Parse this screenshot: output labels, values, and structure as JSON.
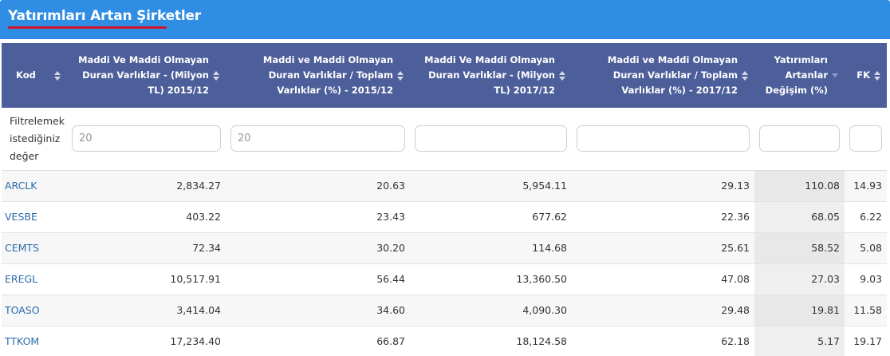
{
  "title": "Yatırımları Artan Şirketler",
  "colors": {
    "title_bar": "#2f8de3",
    "title_underline": "#d0142c",
    "header_bg": "#4d5f9a",
    "link": "#2a6ba8"
  },
  "columns": [
    {
      "label": "Kod",
      "sort": "both"
    },
    {
      "label": "Maddi Ve Maddi Olmayan Duran Varlıklar - (Milyon TL) 2015/12",
      "sort": "both"
    },
    {
      "label": "Maddi ve Maddi Olmayan Duran Varlıklar / Toplam Varlıklar (%) - 2015/12",
      "sort": "both"
    },
    {
      "label": "Maddi Ve Maddi Olmayan Duran Varlıklar - (Milyon TL) 2017/12",
      "sort": "both"
    },
    {
      "label": "Maddi ve Maddi Olmayan Duran Varlıklar / Toplam Varlıklar (%) - 2017/12",
      "sort": "both"
    },
    {
      "label": "Yatırımları Artanlar Değişim (%)",
      "sort": "desc"
    },
    {
      "label": "FK",
      "sort": "both"
    }
  ],
  "filter": {
    "label": "Filtrelemek istediğiniz değer",
    "placeholders": [
      "20",
      "20",
      "",
      "",
      "",
      ""
    ]
  },
  "rows": [
    [
      "ARCLK",
      "2,834.27",
      "20.63",
      "5,954.11",
      "29.13",
      "110.08",
      "14.93"
    ],
    [
      "VESBE",
      "403.22",
      "23.43",
      "677.62",
      "22.36",
      "68.05",
      "6.22"
    ],
    [
      "CEMTS",
      "72.34",
      "30.20",
      "114.68",
      "25.61",
      "58.52",
      "5.08"
    ],
    [
      "EREGL",
      "10,517.91",
      "56.44",
      "13,360.50",
      "47.08",
      "27.03",
      "9.03"
    ],
    [
      "TOASO",
      "3,414.04",
      "34.60",
      "4,090.30",
      "29.48",
      "19.81",
      "11.58"
    ],
    [
      "TTKOM",
      "17,234.40",
      "66.87",
      "18,124.58",
      "62.18",
      "5.17",
      "19.17"
    ]
  ]
}
